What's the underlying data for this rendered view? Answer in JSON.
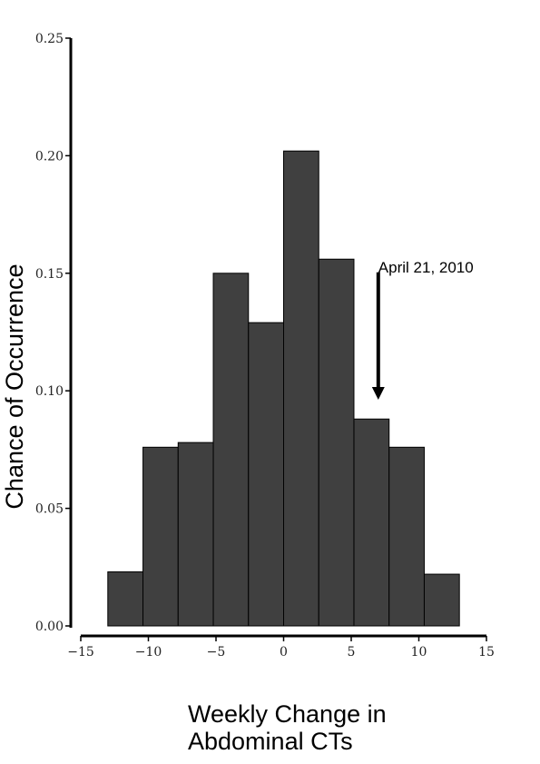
{
  "chart_data": {
    "type": "bar",
    "subtype": "histogram",
    "bins": [
      {
        "x0": -13,
        "x1": -10.4,
        "value": 0.023
      },
      {
        "x0": -10.4,
        "x1": -7.8,
        "value": 0.076
      },
      {
        "x0": -7.8,
        "x1": -5.2,
        "value": 0.078
      },
      {
        "x0": -5.2,
        "x1": -2.6,
        "value": 0.15
      },
      {
        "x0": -2.6,
        "x1": 0,
        "value": 0.129
      },
      {
        "x0": 0,
        "x1": 2.6,
        "value": 0.202
      },
      {
        "x0": 2.6,
        "x1": 5.2,
        "value": 0.156
      },
      {
        "x0": 5.2,
        "x1": 7.8,
        "value": 0.088
      },
      {
        "x0": 7.8,
        "x1": 10.4,
        "value": 0.076
      },
      {
        "x0": 10.4,
        "x1": 13,
        "value": 0.022
      }
    ],
    "xlim": [
      -15,
      15
    ],
    "ylim": [
      0,
      0.25
    ],
    "xticks": [
      -15,
      -10,
      -5,
      0,
      5,
      10,
      15
    ],
    "xtick_labels": [
      "−15",
      "−10",
      "−5",
      "0",
      "5",
      "10",
      "15"
    ],
    "yticks": [
      0,
      0.05,
      0.1,
      0.15,
      0.2,
      0.25
    ],
    "ytick_labels": [
      "0.00",
      "0.05",
      "0.10",
      "0.15",
      "0.20",
      "0.25"
    ],
    "ylabel": "Chance of Occurrence",
    "xlabel_lines": [
      "Weekly Change in",
      "Abdominal CTs"
    ],
    "annotation": {
      "text": "April 21, 2010",
      "x": 7,
      "y_from": 0.145,
      "y_to": 0.097
    },
    "bar_color": "#404040",
    "bar_edge": "#000000",
    "grid": false
  }
}
